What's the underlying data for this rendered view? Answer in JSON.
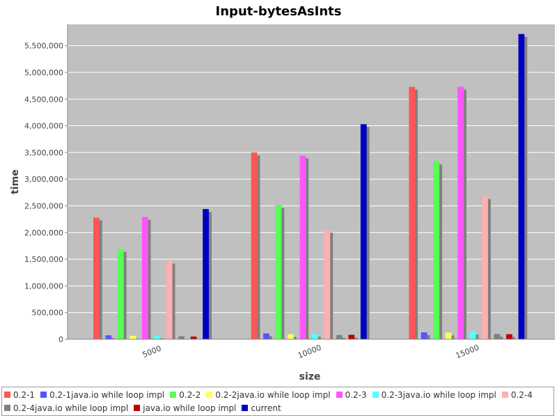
{
  "chart_data": {
    "type": "bar",
    "title": "Input-bytesAsInts",
    "xlabel": "size",
    "ylabel": "time",
    "categories": [
      "5000",
      "10000",
      "15000"
    ],
    "ylim": [
      0,
      5900000
    ],
    "yticks": [
      0,
      500000,
      1000000,
      1500000,
      2000000,
      2500000,
      3000000,
      3500000,
      4000000,
      4500000,
      5000000,
      5500000
    ],
    "ytick_labels": [
      "0",
      "500,000",
      "1,000,000",
      "1,500,000",
      "2,000,000",
      "2,500,000",
      "3,000,000",
      "3,500,000",
      "4,000,000",
      "4,500,000",
      "5,000,000",
      "5,500,000"
    ],
    "grid": true,
    "legend_position": "bottom",
    "series": [
      {
        "name": "0.2-1",
        "color": "#ff5555",
        "values": [
          2280000,
          3500000,
          4730000
        ]
      },
      {
        "name": "0.2-1java.io while loop impl",
        "color": "#5555ff",
        "values": [
          75000,
          110000,
          130000
        ]
      },
      {
        "name": "0.2-2",
        "color": "#55ff55",
        "values": [
          1690000,
          2510000,
          3330000
        ]
      },
      {
        "name": "0.2-2java.io while loop impl",
        "color": "#ffff55",
        "values": [
          65000,
          95000,
          125000
        ]
      },
      {
        "name": "0.2-3",
        "color": "#ff55ff",
        "values": [
          2290000,
          3440000,
          4730000
        ]
      },
      {
        "name": "0.2-3java.io while loop impl",
        "color": "#55ffff",
        "values": [
          70000,
          100000,
          140000
        ]
      },
      {
        "name": "0.2-4",
        "color": "#ffafaf",
        "values": [
          1470000,
          2050000,
          2680000
        ]
      },
      {
        "name": "0.2-4java.io while loop impl",
        "color": "#808080",
        "values": [
          55000,
          80000,
          100000
        ]
      },
      {
        "name": "java.io while loop impl",
        "color": "#c00000",
        "values": [
          50000,
          85000,
          95000
        ]
      },
      {
        "name": "current",
        "color": "#0000c0",
        "values": [
          2440000,
          4030000,
          5720000
        ]
      }
    ]
  }
}
